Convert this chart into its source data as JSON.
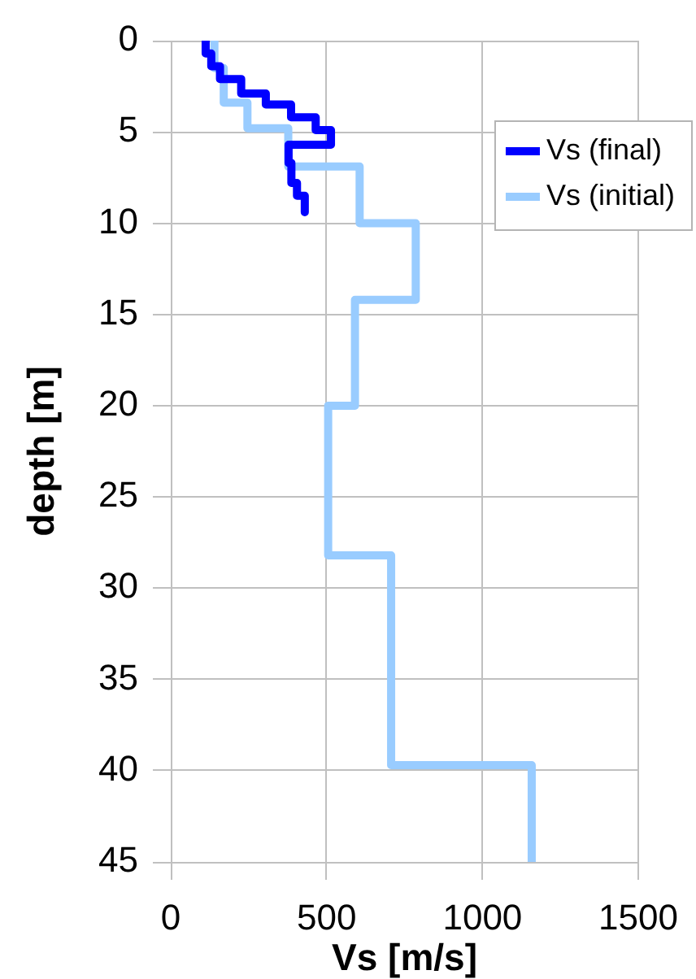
{
  "chart_data": {
    "type": "line",
    "xlabel": "Vs [m/s]",
    "ylabel": "depth [m]",
    "series": [
      {
        "name": "Vs (final)",
        "color": "#0000ff",
        "x": [
          112,
          112,
          130,
          130,
          158,
          158,
          226,
          226,
          305,
          305,
          386,
          386,
          465,
          465,
          514,
          514,
          378,
          378,
          387,
          387,
          405,
          405,
          430,
          430
        ],
        "values": [
          0,
          0.7,
          0.7,
          1.4,
          1.4,
          2.1,
          2.1,
          2.9,
          2.9,
          3.5,
          3.5,
          4.2,
          4.2,
          4.9,
          4.9,
          5.7,
          5.7,
          6.7,
          6.7,
          7.8,
          7.8,
          8.5,
          8.5,
          9.4
        ]
      },
      {
        "name": "Vs (initial)",
        "color": "#99ccff",
        "x": [
          140,
          140,
          170,
          170,
          246,
          246,
          377,
          377,
          606,
          606,
          786,
          786,
          591,
          591,
          505,
          505,
          707,
          707,
          1158,
          1158
        ],
        "values": [
          0,
          1.5,
          1.5,
          3.4,
          3.4,
          4.8,
          4.8,
          6.9,
          6.9,
          10,
          10,
          14.2,
          14.2,
          20,
          20,
          28.2,
          28.2,
          39.7,
          39.7,
          45
        ]
      }
    ],
    "xlim": [
      0,
      1500
    ],
    "xticks": [
      0,
      500,
      1000,
      1500
    ],
    "ylim": [
      45,
      0
    ],
    "yticks": [
      0,
      5,
      10,
      15,
      20,
      25,
      30,
      35,
      40,
      45
    ],
    "grid": true,
    "legend": "top right",
    "line_style": "solid"
  }
}
